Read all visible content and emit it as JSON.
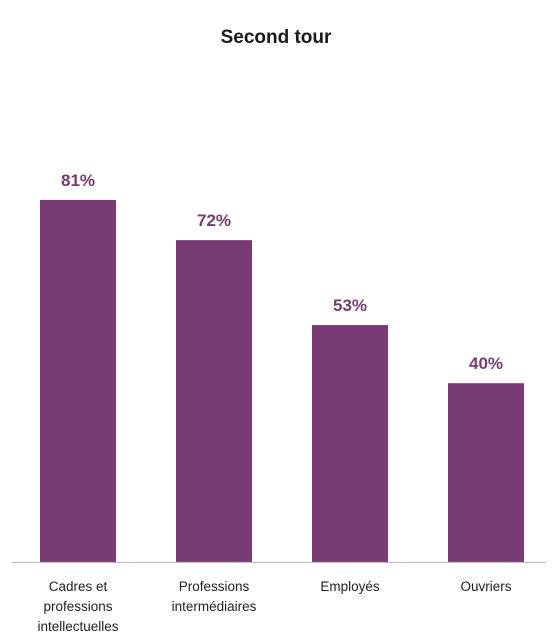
{
  "chart_data": {
    "type": "bar",
    "title": "Second tour",
    "categories": [
      [
        "Cadres et",
        "professions",
        "intellectuelles"
      ],
      [
        "Professions",
        "intermédiaires"
      ],
      [
        "Employés"
      ],
      [
        "Ouvriers"
      ]
    ],
    "values": [
      81,
      72,
      53,
      40
    ],
    "data_labels": [
      "81%",
      "72%",
      "53%",
      "40%"
    ],
    "xlabel": "",
    "ylabel": "",
    "ylim": [
      0,
      100
    ],
    "grid": false,
    "legend": "none",
    "bar_color": "#783a73",
    "label_color": "#783a73",
    "axis_color": "#bfbfbf"
  }
}
